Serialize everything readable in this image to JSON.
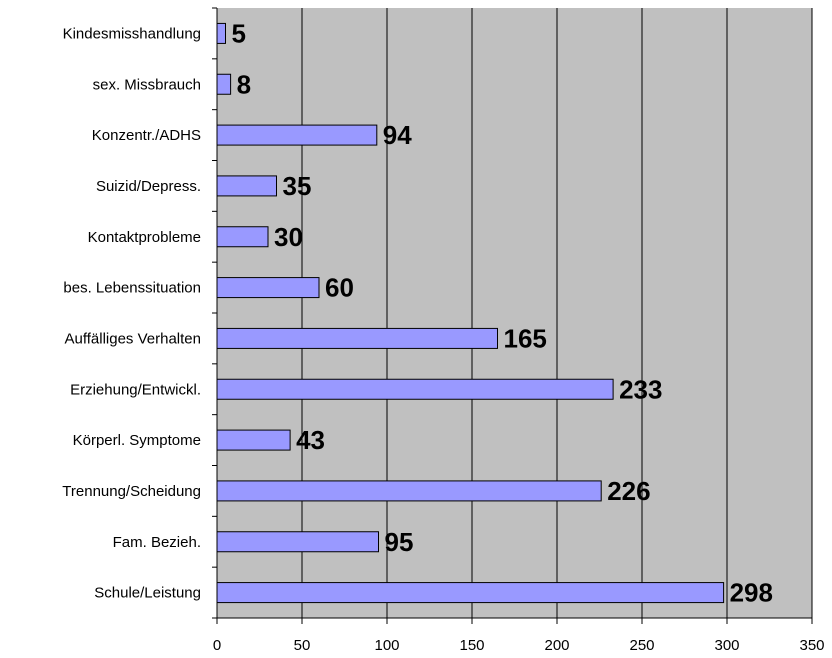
{
  "chart_data": {
    "type": "bar",
    "orientation": "horizontal",
    "categories": [
      "Kindesmisshandlung",
      "sex. Missbrauch",
      "Konzentr./ADHS",
      "Suizid/Depress.",
      "Kontaktprobleme",
      "bes. Lebenssituation",
      "Auffälliges Verhalten",
      "Erziehung/Entwickl.",
      "Körperl. Symptome",
      "Trennung/Scheidung",
      "Fam. Bezieh.",
      "Schule/Leistung"
    ],
    "values": [
      5,
      8,
      94,
      35,
      30,
      60,
      165,
      233,
      43,
      226,
      95,
      298
    ],
    "xlim": [
      0,
      350
    ],
    "xticks": [
      0,
      50,
      100,
      150,
      200,
      250,
      300,
      350
    ],
    "grid": "vertical",
    "legend": "none",
    "title": "",
    "xlabel": "",
    "ylabel": ""
  },
  "colors": {
    "plot_background": "#c0c0c0",
    "bar_fill": "#9999ff",
    "bar_stroke": "#000000",
    "gridline": "#000000"
  }
}
